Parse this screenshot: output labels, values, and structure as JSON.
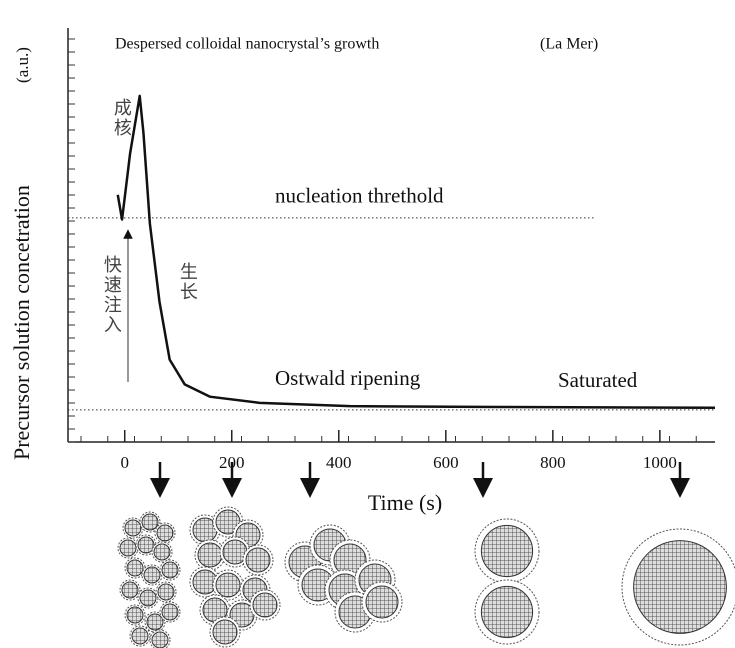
{
  "chart_data": {
    "type": "line",
    "title": "Despersed colloidal nanocrystal’s growth",
    "subtitle": "(La Mer)",
    "x_label": "Time (s)",
    "y_label": "Precursor solution concetration",
    "y_unit": "(a.u.)",
    "xlim": [
      -106,
      1103
    ],
    "xticks": [
      0,
      200,
      400,
      600,
      800,
      1000
    ],
    "ylim": [
      0,
      10
    ],
    "series": [
      {
        "color": "#111111",
        "x": [
          -13,
          -5,
          10,
          28,
          35,
          47,
          65,
          84,
          112,
          159,
          252,
          421,
          701,
          1103
        ],
        "values": [
          6.0,
          5.4,
          7.0,
          8.4,
          7.5,
          5.3,
          3.4,
          2.0,
          1.4,
          1.1,
          0.95,
          0.87,
          0.85,
          0.83
        ]
      }
    ],
    "reference_lines": [
      {
        "label": "nucleation threthold",
        "value": 5.44,
        "xmax": 878
      },
      {
        "value": 0.78
      }
    ],
    "annotations": [
      "Ostwald ripening",
      "Saturated",
      "成核",
      "快速注入",
      "生长"
    ]
  }
}
